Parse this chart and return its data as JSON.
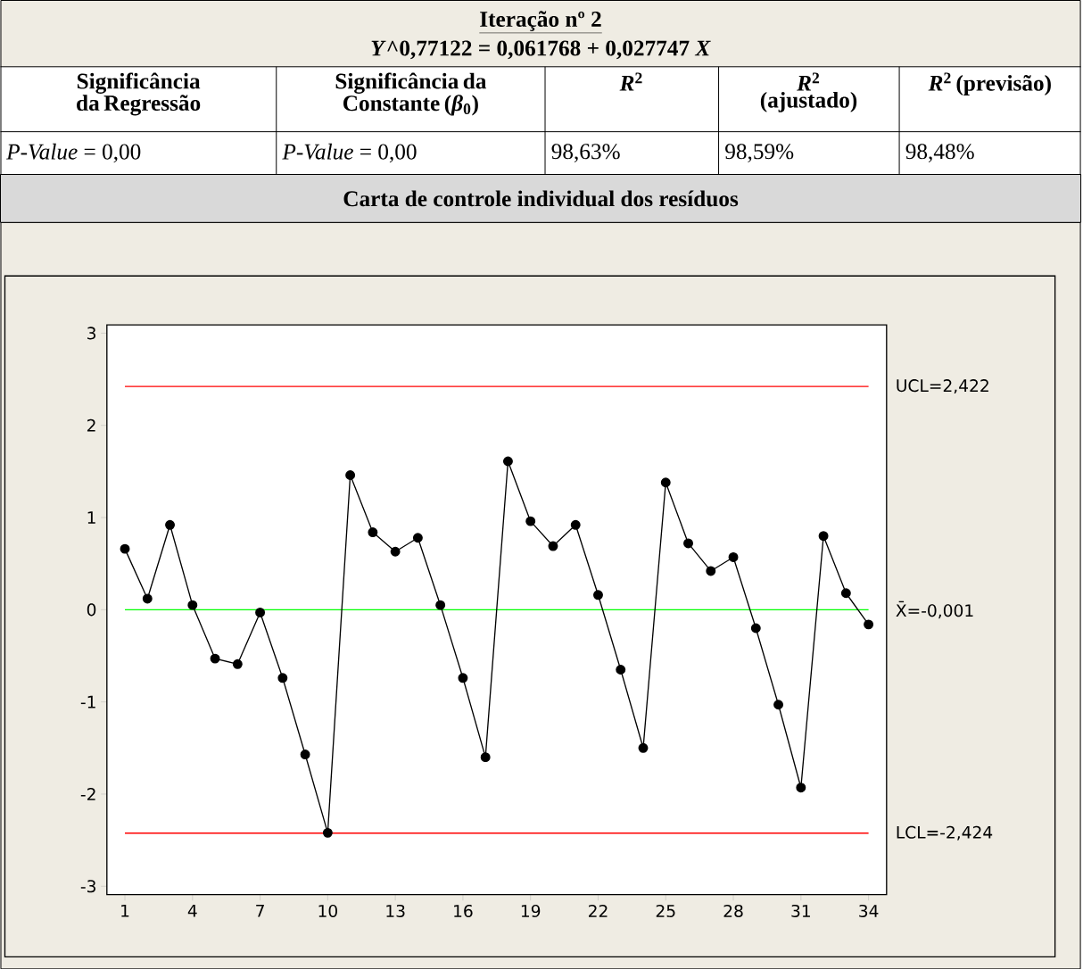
{
  "chart_data": {
    "type": "line",
    "title": "Iteração nº 2",
    "subtitle": "*Y*^0,77122 = 0,061768 + 0,027747 *X*",
    "annotations": [
      "Significância da Regressão",
      "Significância da Constante (*β*$_{0}$)",
      "*R*$^{2}$",
      "*R*$^{2}$ (ajustado)",
      "*R*$^{2}$ (previsão)",
      "*P-Value* = 0,00",
      "*P-Value* = 0,00",
      "98,63%",
      "98,59%",
      "98,48%",
      "Carta de controle individual dos resíduos"
    ],
    "x": [
      1,
      2,
      3,
      4,
      5,
      6,
      7,
      8,
      9,
      10,
      11,
      12,
      13,
      14,
      15,
      16,
      17,
      18,
      19,
      20,
      21,
      22,
      23,
      24,
      25,
      26,
      27,
      28,
      29,
      30,
      31,
      32,
      33,
      34
    ],
    "series": [
      {
        "color": "#000000",
        "values": [
          0.66,
          0.12,
          0.92,
          0.05,
          -0.53,
          -0.59,
          -0.03,
          -0.74,
          -1.57,
          -2.42,
          1.46,
          0.84,
          0.63,
          0.78,
          0.05,
          -0.74,
          -1.6,
          1.61,
          0.96,
          0.69,
          0.92,
          0.16,
          -0.65,
          -1.5,
          1.38,
          0.72,
          0.42,
          0.57,
          -0.2,
          -1.03,
          -1.93,
          0.8,
          0.18,
          -0.16
        ]
      }
    ],
    "xlim": [
      0.2,
      34.8
    ],
    "ylim": [
      -3.09,
      3.09
    ],
    "xticks": [
      1,
      4,
      7,
      10,
      13,
      16,
      19,
      22,
      25,
      28,
      31,
      34
    ],
    "yticks": [
      -3,
      -2,
      -1,
      0,
      1,
      2,
      3
    ],
    "ref_lines": [
      {
        "axis": "y",
        "value": 2.422,
        "label": "UCL=2,422",
        "color": "#ff0000"
      },
      {
        "axis": "y",
        "value": -0.001,
        "label": "X̄=-0,001",
        "color": "#00ff00"
      },
      {
        "axis": "y",
        "value": -2.424,
        "label": "LCL=-2,424",
        "color": "#ff0000"
      }
    ],
    "marker": "circle",
    "line_style": "solid",
    "grid": false
  }
}
